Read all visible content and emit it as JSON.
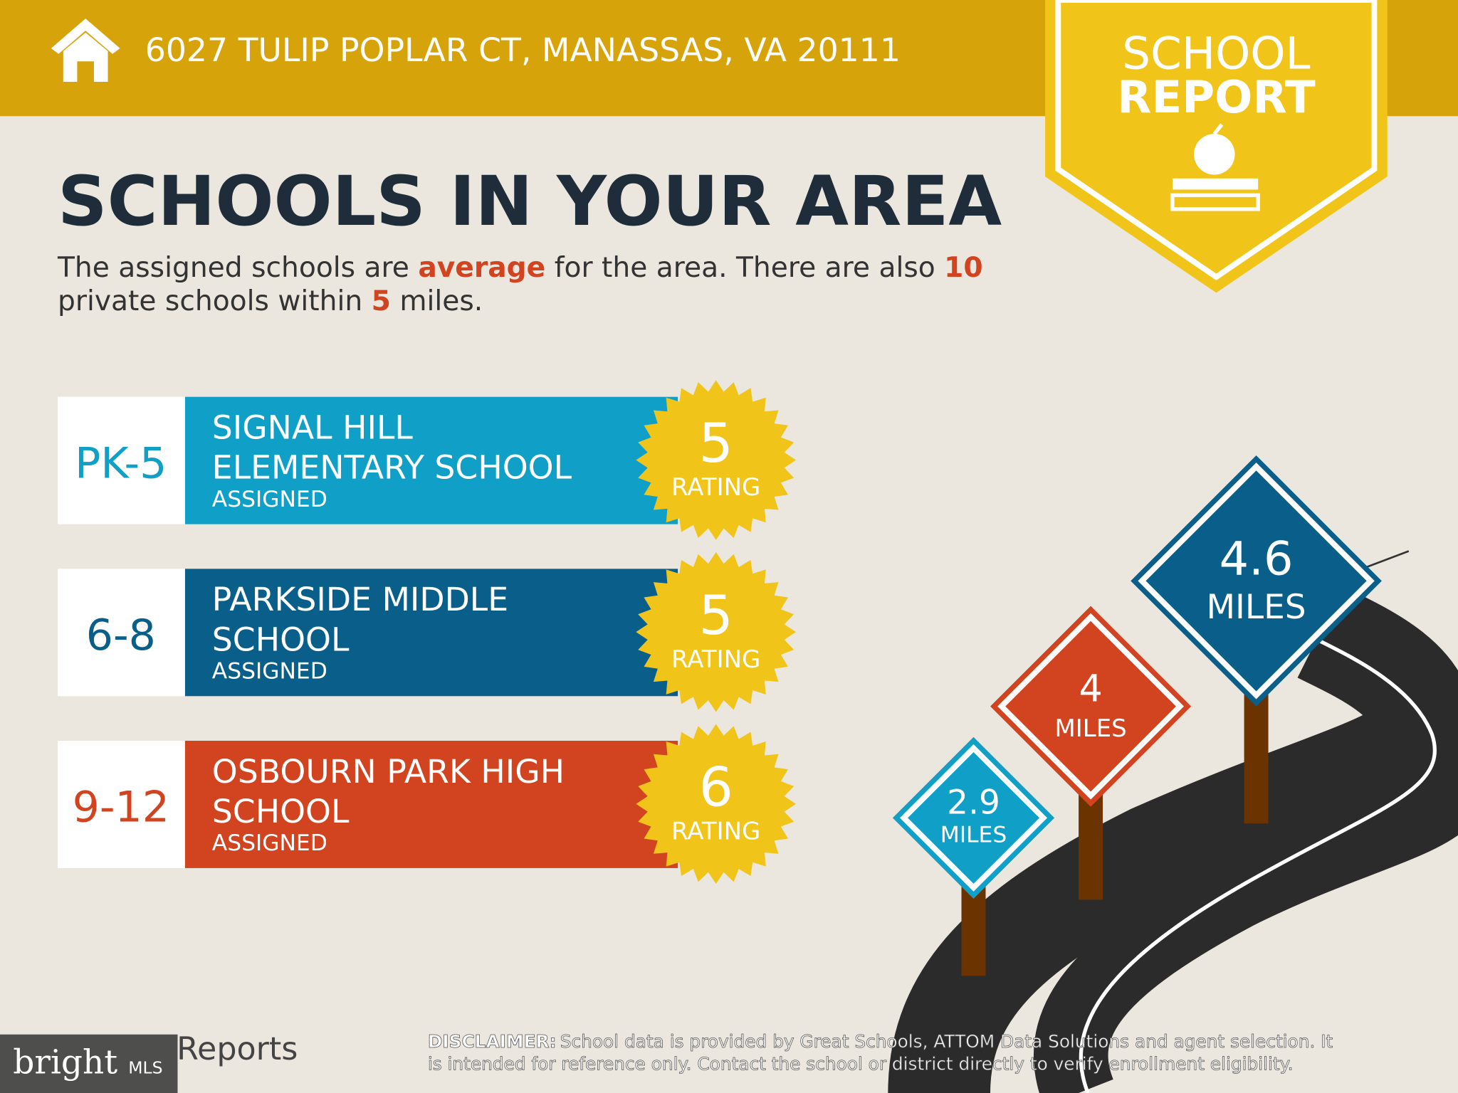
{
  "header": {
    "address": "6027 TULIP POPLAR CT, MANASSAS, VA 20111"
  },
  "badge": {
    "line1": "SCHOOL",
    "line2": "REPORT"
  },
  "title": "SCHOOLS IN YOUR AREA",
  "intro": {
    "lines": [
      [
        "The assigned schools are ",
        "average",
        " for the area. There are also ",
        10
      ],
      [
        "private schools within ",
        5,
        " miles."
      ]
    ]
  },
  "schools": [
    {
      "grades": "PK-5",
      "name": [
        "SIGNAL HILL",
        "ELEMENTARY SCHOOL"
      ],
      "status": "ASSIGNED",
      "rating": 5,
      "rating_label": "RATING"
    },
    {
      "grades": "6-8",
      "name": [
        "PARKSIDE MIDDLE",
        "SCHOOL"
      ],
      "status": "ASSIGNED",
      "rating": 5,
      "rating_label": "RATING"
    },
    {
      "grades": "9-12",
      "name": [
        "OSBOURN PARK HIGH",
        "SCHOOL"
      ],
      "status": "ASSIGNED",
      "rating": 6,
      "rating_label": "RATING"
    }
  ],
  "distances": [
    {
      "value": 2.9,
      "unit": "MILES"
    },
    {
      "value": 4,
      "unit": "MILES"
    },
    {
      "value": 4.6,
      "unit": "MILES"
    }
  ],
  "footer": {
    "logo": "Reports",
    "watermark": [
      "bright",
      "MLS"
    ],
    "disclaimer_label": "DISCLAIMER:",
    "disclaimer": [
      "School data is provided by Great Schools, ATTOM Data Solutions and agent selection. It",
      "is intended for reference only. Contact the school or district directly to verify enrollment eligibility."
    ]
  }
}
